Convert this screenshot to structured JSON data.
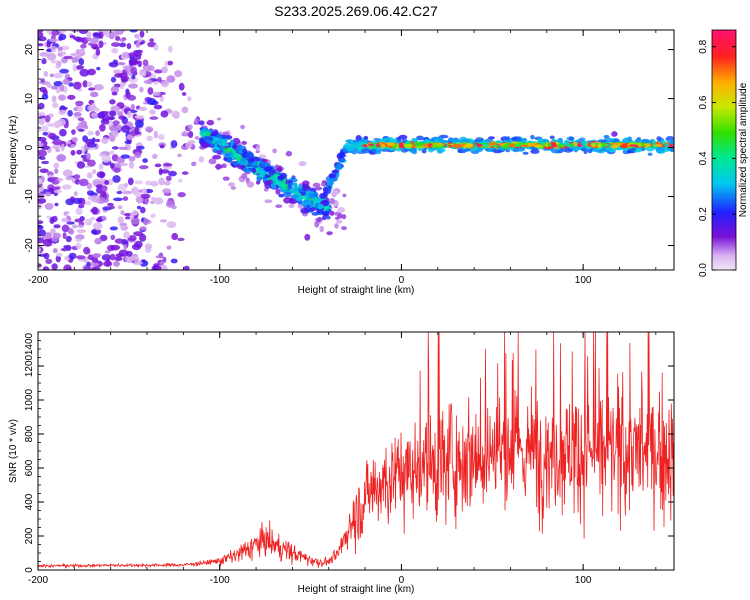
{
  "page_title": "S233.2025.269.06.42.C27",
  "chart_data": [
    {
      "type": "heatmap",
      "title": "S233.2025.269.06.42.C27",
      "xlabel": "Height of straight line (km)",
      "ylabel": "Frequency (Hz)",
      "xlim": [
        -200,
        150
      ],
      "ylim": [
        -25,
        24
      ],
      "xticks": [
        -200,
        -100,
        0,
        100
      ],
      "yticks": [
        -20,
        -10,
        0,
        10,
        20
      ],
      "colorbar": {
        "label": "Normalized spectral amplitude",
        "range": [
          0,
          0.86
        ],
        "ticks": [
          0.0,
          0.2,
          0.4,
          0.6,
          0.8
        ]
      },
      "features": [
        {
          "name": "scattered noise",
          "x_range": [
            -200,
            -115
          ],
          "freq_range": [
            -25,
            24
          ],
          "amplitude": 0.1
        },
        {
          "name": "descending trace",
          "x_range": [
            -110,
            -40
          ],
          "freq_start": 3,
          "freq_end": -13,
          "amplitude": 0.4
        },
        {
          "name": "steady trace near 0 Hz",
          "x_range": [
            -30,
            150
          ],
          "freq": 0.5,
          "amplitude": 0.75
        }
      ]
    },
    {
      "type": "line",
      "xlabel": "Height of straight line (km)",
      "ylabel": "SNR (10 * v/v)",
      "xlim": [
        -200,
        150
      ],
      "ylim": [
        0,
        1400
      ],
      "xticks": [
        -200,
        -100,
        0,
        100
      ],
      "yticks": [
        0,
        200,
        400,
        600,
        800,
        1000,
        1200,
        1400
      ],
      "series": [
        {
          "name": "SNR",
          "color": "#ee2222",
          "x": [
            -200,
            -180,
            -160,
            -140,
            -120,
            -110,
            -100,
            -90,
            -80,
            -75,
            -70,
            -60,
            -50,
            -45,
            -40,
            -35,
            -30,
            -25,
            -20,
            -15,
            -10,
            0,
            10,
            20,
            30,
            40,
            50,
            60,
            70,
            80,
            90,
            100,
            110,
            120,
            130,
            140,
            150
          ],
          "values": [
            25,
            25,
            28,
            28,
            30,
            40,
            55,
            90,
            150,
            180,
            150,
            100,
            60,
            45,
            50,
            90,
            230,
            330,
            420,
            480,
            520,
            570,
            610,
            640,
            660,
            680,
            700,
            690,
            700,
            690,
            710,
            700,
            690,
            700,
            700,
            690,
            690
          ]
        }
      ]
    }
  ]
}
